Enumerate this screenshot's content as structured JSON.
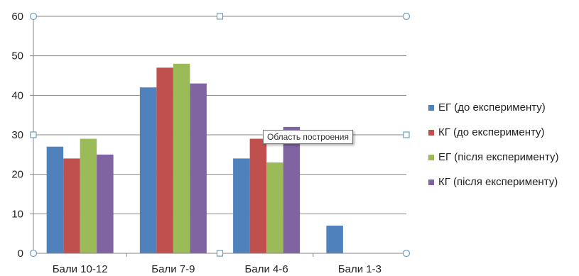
{
  "chart_data": {
    "type": "bar",
    "categories": [
      "Бали 10-12",
      "Бали  7-9",
      "Бали 4-6",
      "Бали 1-3"
    ],
    "series": [
      {
        "name": "ЕГ (до експерименту)",
        "values": [
          27,
          42,
          24,
          7
        ],
        "color": "#4F81BD"
      },
      {
        "name": "КГ (до експерименту)",
        "values": [
          24,
          47,
          29,
          0
        ],
        "color": "#C0504D"
      },
      {
        "name": "ЕГ (після експерименту)",
        "values": [
          29,
          48,
          23,
          0
        ],
        "color": "#9BBB59"
      },
      {
        "name": "КГ (після експерименту)",
        "values": [
          25,
          43,
          32,
          0
        ],
        "color": "#8064A2"
      }
    ],
    "ylim": [
      0,
      60
    ],
    "yticks": [
      0,
      10,
      20,
      30,
      40,
      50,
      60
    ],
    "grid": true,
    "legend": "right"
  },
  "tooltip": {
    "text": "Область построения"
  }
}
